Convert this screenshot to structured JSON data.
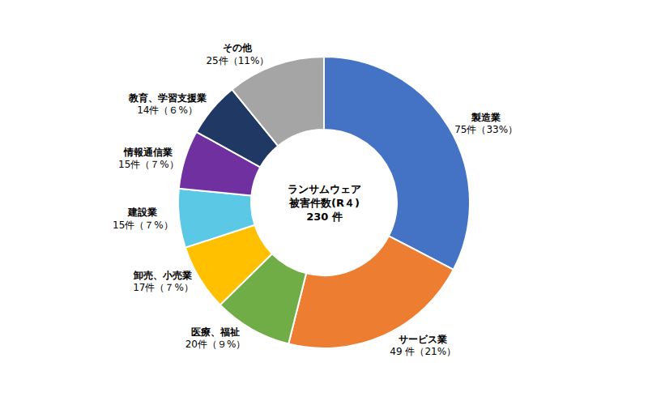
{
  "chart_data": {
    "type": "donut",
    "categories": [
      "製造業",
      "サービス業",
      "医療、福祉",
      "卸売、小売業",
      "建設業",
      "情報通信業",
      "教育、学習支援業",
      "その他"
    ],
    "values": [
      75,
      49,
      20,
      17,
      15,
      15,
      14,
      25
    ],
    "value_labels": [
      "75件（33%）",
      "49 件（21%）",
      "20件（９%）",
      "17件（７%）",
      "15件（７%）",
      "15件（７%）",
      "14件（６%）",
      "25件（11%）"
    ],
    "colors": [
      "#4472C4",
      "#ED7D31",
      "#70AD47",
      "#FFC000",
      "#5BC8E6",
      "#7030A0",
      "#1F3864",
      "#A5A5A5"
    ],
    "annotations": [
      "ランサムウェア",
      "被害件数(R４)",
      "230 件"
    ],
    "data_labels": true
  }
}
